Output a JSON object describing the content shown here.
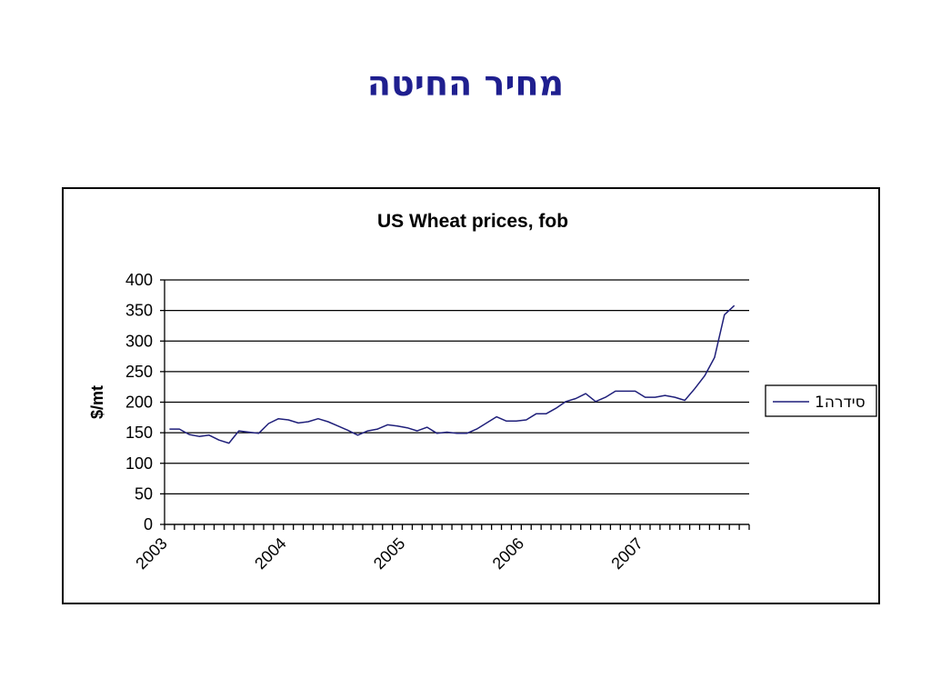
{
  "slide": {
    "title": "מחיר החיטה"
  },
  "colors": {
    "title": "#1f1f8f",
    "series": "#1f1f7a",
    "axis": "#000000",
    "grid": "#000000"
  },
  "chart_data": {
    "type": "line",
    "title": "US Wheat prices, fob",
    "xlabel": "",
    "ylabel": "$/mt",
    "ylim": [
      0,
      400
    ],
    "yticks": [
      0,
      50,
      100,
      150,
      200,
      250,
      300,
      350,
      400
    ],
    "grid": true,
    "legend_position": "right",
    "x_start": 2003.0,
    "x_step": 0.0833,
    "xtick_labels": [
      "2003",
      "2004",
      "2005",
      "2006",
      "2007"
    ],
    "series": [
      {
        "name": "סידרה1",
        "values": [
          156,
          156,
          147,
          144,
          146,
          138,
          133,
          153,
          151,
          149,
          165,
          173,
          171,
          166,
          168,
          173,
          168,
          161,
          154,
          146,
          153,
          156,
          163,
          161,
          158,
          153,
          159,
          149,
          151,
          149,
          149,
          156,
          166,
          176,
          169,
          169,
          171,
          181,
          181,
          190,
          201,
          206,
          214,
          201,
          208,
          218,
          218,
          218,
          208,
          208,
          211,
          208,
          203,
          222,
          243,
          273,
          343,
          358
        ]
      }
    ]
  }
}
